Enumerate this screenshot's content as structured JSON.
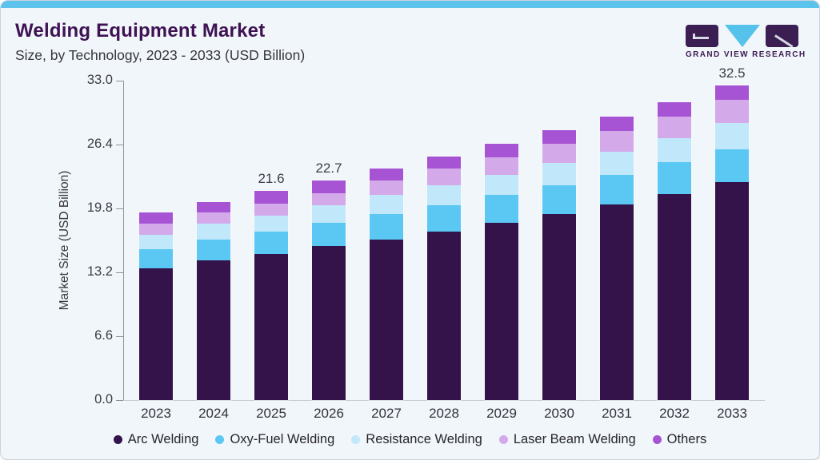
{
  "header": {
    "title": "Welding Equipment Market",
    "subtitle": "Size, by Technology, 2023 - 2033 (USD Billion)"
  },
  "logo": {
    "brand": "GRAND VIEW RESEARCH"
  },
  "colors": {
    "accent_top_bar": "#5cc3ed",
    "title_purple": "#3e1253",
    "card_background": "#f1f6fa",
    "axis_line": "#8e949c",
    "baseline": "#c9ced5"
  },
  "chart_data": {
    "type": "bar",
    "stacked": true,
    "title": "Welding Equipment Market Size, by Technology, 2023 - 2033 (USD Billion)",
    "xlabel": "",
    "ylabel": "Market Size (USD Billion)",
    "ylim": [
      0,
      33
    ],
    "yticks": [
      0.0,
      6.6,
      13.2,
      19.8,
      26.4,
      33.0
    ],
    "grid": false,
    "legend_position": "bottom",
    "categories": [
      "2023",
      "2024",
      "2025",
      "2026",
      "2027",
      "2028",
      "2029",
      "2030",
      "2031",
      "2032",
      "2033"
    ],
    "series": [
      {
        "name": "Arc Welding",
        "color": "#33134a",
        "values": [
          13.6,
          14.4,
          15.1,
          15.9,
          16.6,
          17.4,
          18.3,
          19.2,
          20.2,
          21.3,
          22.5
        ]
      },
      {
        "name": "Oxy-Fuel Welding",
        "color": "#5bc8f4",
        "values": [
          2.0,
          2.2,
          2.3,
          2.4,
          2.6,
          2.7,
          2.9,
          3.0,
          3.1,
          3.3,
          3.4
        ]
      },
      {
        "name": "Resistance Welding",
        "color": "#c0e8fa",
        "values": [
          1.5,
          1.6,
          1.7,
          1.8,
          2.0,
          2.1,
          2.1,
          2.3,
          2.4,
          2.5,
          2.7
        ]
      },
      {
        "name": "Laser Beam Welding",
        "color": "#d3a9ea",
        "values": [
          1.1,
          1.2,
          1.2,
          1.3,
          1.5,
          1.7,
          1.8,
          2.0,
          2.1,
          2.2,
          2.4
        ]
      },
      {
        "name": "Others",
        "color": "#a754d4",
        "values": [
          1.2,
          1.1,
          1.3,
          1.3,
          1.2,
          1.3,
          1.4,
          1.4,
          1.5,
          1.5,
          1.5
        ]
      }
    ],
    "totals": [
      19.4,
      20.5,
      21.6,
      22.7,
      23.9,
      25.2,
      26.5,
      27.9,
      29.3,
      30.8,
      32.5
    ],
    "value_labels": [
      "",
      "",
      "21.6",
      "22.7",
      "",
      "",
      "",
      "",
      "",
      "",
      "32.5"
    ]
  }
}
